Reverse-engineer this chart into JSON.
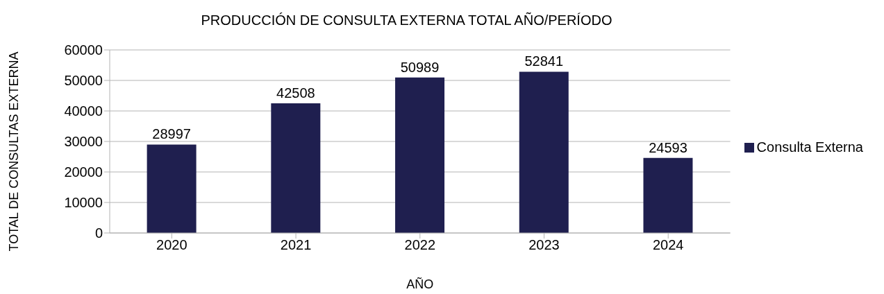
{
  "chart_data": {
    "type": "bar",
    "title": "PRODUCCIÓN DE CONSULTA EXTERNA TOTAL AÑO/PERÍODO",
    "xlabel": "AÑO",
    "ylabel": "TOTAL DE CONSULTAS EXTERNA",
    "categories": [
      "2020",
      "2021",
      "2022",
      "2023",
      "2024"
    ],
    "series": [
      {
        "name": "Consulta Externa",
        "color": "#1f1f4f",
        "values": [
          28997,
          42508,
          50989,
          52841,
          24593
        ]
      }
    ],
    "ylim": [
      0,
      60000
    ],
    "yticks": [
      0,
      10000,
      20000,
      30000,
      40000,
      50000,
      60000
    ],
    "grid": "y",
    "legend": "right",
    "data_labels": true
  }
}
